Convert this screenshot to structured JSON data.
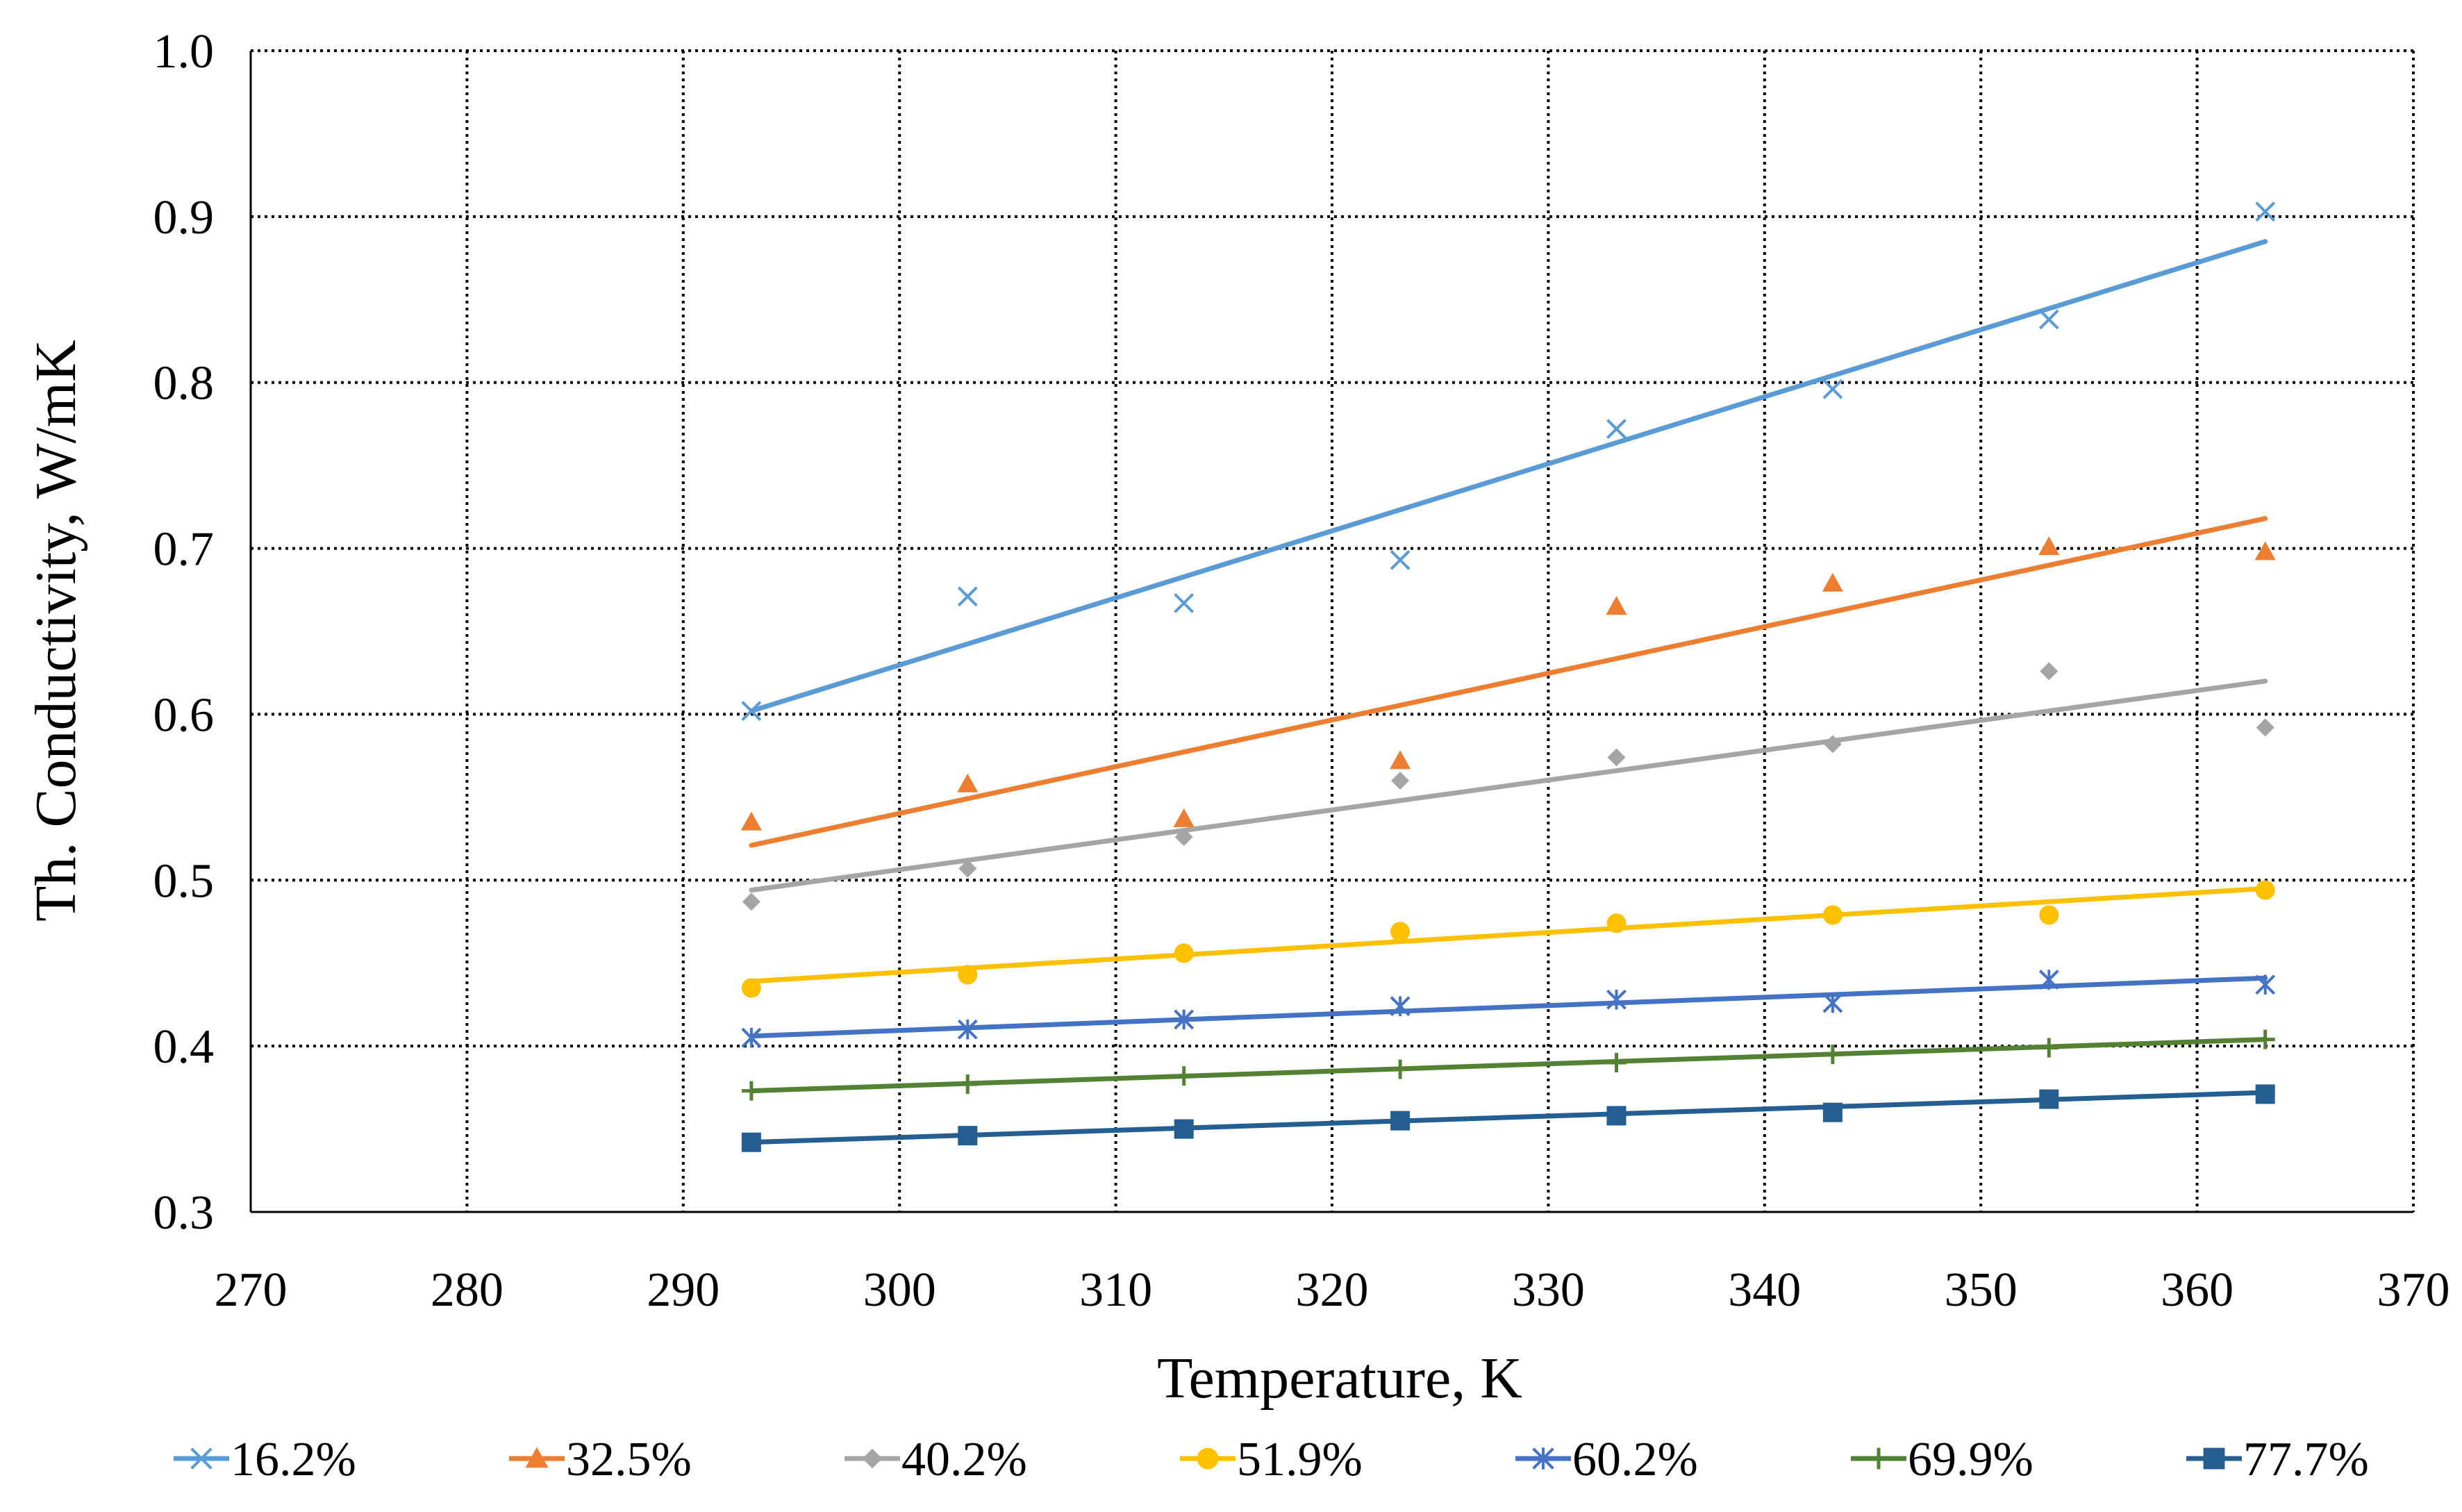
{
  "chart_data": {
    "type": "scatter",
    "title": "",
    "xlabel": "Temperature, K",
    "ylabel": "Th. Conductivity, W/mK",
    "xlim": [
      270,
      370
    ],
    "ylim": [
      0.3,
      1.0
    ],
    "xticks": [
      "270",
      "280",
      "290",
      "300",
      "310",
      "320",
      "330",
      "340",
      "350",
      "360",
      "370"
    ],
    "yticks": [
      "0.3",
      "0.4",
      "0.5",
      "0.6",
      "0.7",
      "0.8",
      "0.9",
      "1.0"
    ],
    "grid": true,
    "legend_position": "bottom",
    "trendlines": "linear",
    "x": [
      293.15,
      303.15,
      313.15,
      323.15,
      333.15,
      343.15,
      353.15,
      363.15
    ],
    "series": [
      {
        "name": "16.2%",
        "color": "#5b9bd5",
        "marker": "x",
        "values": [
          0.602,
          0.671,
          0.667,
          0.693,
          0.772,
          0.796,
          0.838,
          0.903
        ],
        "trend": [
          0.602,
          0.885
        ]
      },
      {
        "name": "32.5%",
        "color": "#ed7d31",
        "marker": "triangle",
        "values": [
          0.535,
          0.558,
          0.537,
          0.572,
          0.665,
          0.679,
          0.701,
          0.698
        ],
        "trend": [
          0.521,
          0.718
        ]
      },
      {
        "name": "40.2%",
        "color": "#a5a5a5",
        "marker": "diamond",
        "values": [
          0.487,
          0.507,
          0.526,
          0.56,
          0.574,
          0.582,
          0.626,
          0.592
        ],
        "trend": [
          0.494,
          0.62
        ]
      },
      {
        "name": "51.9%",
        "color": "#ffc000",
        "marker": "circle",
        "values": [
          0.435,
          0.443,
          0.456,
          0.469,
          0.474,
          0.479,
          0.479,
          0.494
        ],
        "trend": [
          0.439,
          0.495
        ]
      },
      {
        "name": "60.2%",
        "color": "#4472c4",
        "marker": "asterisk",
        "values": [
          0.405,
          0.41,
          0.416,
          0.424,
          0.428,
          0.426,
          0.44,
          0.437
        ],
        "trend": [
          0.406,
          0.441
        ]
      },
      {
        "name": "69.9%",
        "color": "#548235",
        "marker": "plus",
        "values": [
          0.373,
          0.377,
          0.382,
          0.386,
          0.39,
          0.395,
          0.399,
          0.404
        ],
        "trend": [
          0.373,
          0.404
        ]
      },
      {
        "name": "77.7%",
        "color": "#255e91",
        "marker": "square",
        "values": [
          0.342,
          0.346,
          0.35,
          0.355,
          0.358,
          0.36,
          0.368,
          0.371
        ],
        "trend": [
          0.342,
          0.372
        ]
      }
    ]
  }
}
